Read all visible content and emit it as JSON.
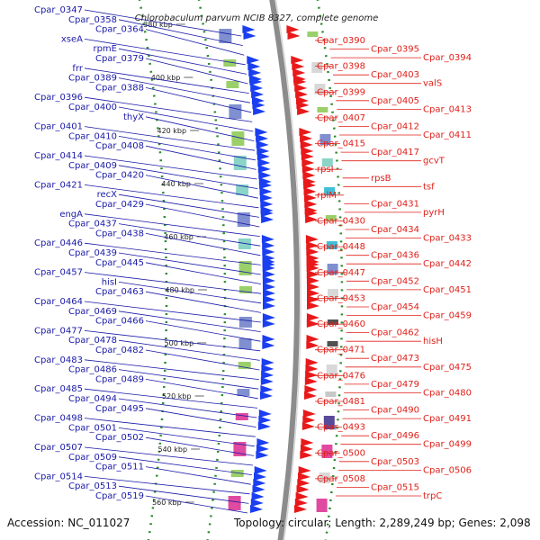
{
  "title": "Chlorobaculum parvum NCIB 8327, complete genome",
  "footer": {
    "accession": "Accession: NC_011027",
    "summary": "Topology: circular; Length: 2,289,249 bp; Genes: 2,098"
  },
  "colors": {
    "left_labels": "#1a1aa8",
    "right_labels": "#e0201a",
    "backbone": "#8c8c8c",
    "dotted_ring": "#2a8a2a",
    "forward_genes": "#1a3ef0",
    "reverse_genes": "#e8191a"
  },
  "scale_ticks": [
    "380 kbp",
    "400 kbp",
    "420 kbp",
    "440 kbp",
    "460 kbp",
    "480 kbp",
    "500 kbp",
    "520 kbp",
    "540 kbp",
    "560 kbp"
  ],
  "left_labels": [
    "Cpar_0347",
    "Cpar_0358",
    "Cpar_0364",
    "xseA",
    "rpmE",
    "Cpar_0379",
    "frr",
    "Cpar_0389",
    "Cpar_0388",
    "Cpar_0396",
    "Cpar_0400",
    "thyX",
    "Cpar_0401",
    "Cpar_0410",
    "Cpar_0408",
    "Cpar_0414",
    "Cpar_0409",
    "Cpar_0420",
    "Cpar_0421",
    "recX",
    "Cpar_0429",
    "engA",
    "Cpar_0437",
    "Cpar_0438",
    "Cpar_0446",
    "Cpar_0439",
    "Cpar_0445",
    "Cpar_0457",
    "hisI",
    "Cpar_0463",
    "Cpar_0464",
    "Cpar_0469",
    "Cpar_0466",
    "Cpar_0477",
    "Cpar_0478",
    "Cpar_0482",
    "Cpar_0483",
    "Cpar_0486",
    "Cpar_0489",
    "Cpar_0485",
    "Cpar_0494",
    "Cpar_0495",
    "Cpar_0498",
    "Cpar_0501",
    "Cpar_0502",
    "Cpar_0507",
    "Cpar_0509",
    "Cpar_0511",
    "Cpar_0514",
    "Cpar_0513",
    "Cpar_0519"
  ],
  "right_labels": [
    "Cpar_0390",
    "Cpar_0395",
    "Cpar_0394",
    "Cpar_0398",
    "Cpar_0403",
    "valS",
    "Cpar_0399",
    "Cpar_0405",
    "Cpar_0413",
    "Cpar_0407",
    "Cpar_0412",
    "Cpar_0411",
    "Cpar_0415",
    "Cpar_0417",
    "gcvT",
    "rpsI",
    "rpsB",
    "tsf",
    "rplM",
    "Cpar_0431",
    "pyrH",
    "Cpar_0430",
    "Cpar_0434",
    "Cpar_0433",
    "Cpar_0448",
    "Cpar_0436",
    "Cpar_0442",
    "Cpar_0447",
    "Cpar_0452",
    "Cpar_0451",
    "Cpar_0453",
    "Cpar_0454",
    "Cpar_0459",
    "Cpar_0460",
    "Cpar_0462",
    "hisH",
    "Cpar_0471",
    "Cpar_0473",
    "Cpar_0475",
    "Cpar_0476",
    "Cpar_0479",
    "Cpar_0480",
    "Cpar_0481",
    "Cpar_0490",
    "Cpar_0491",
    "Cpar_0493",
    "Cpar_0496",
    "Cpar_0499",
    "Cpar_0500",
    "Cpar_0503",
    "Cpar_0506",
    "Cpar_0508",
    "Cpar_0515",
    "trpC"
  ]
}
